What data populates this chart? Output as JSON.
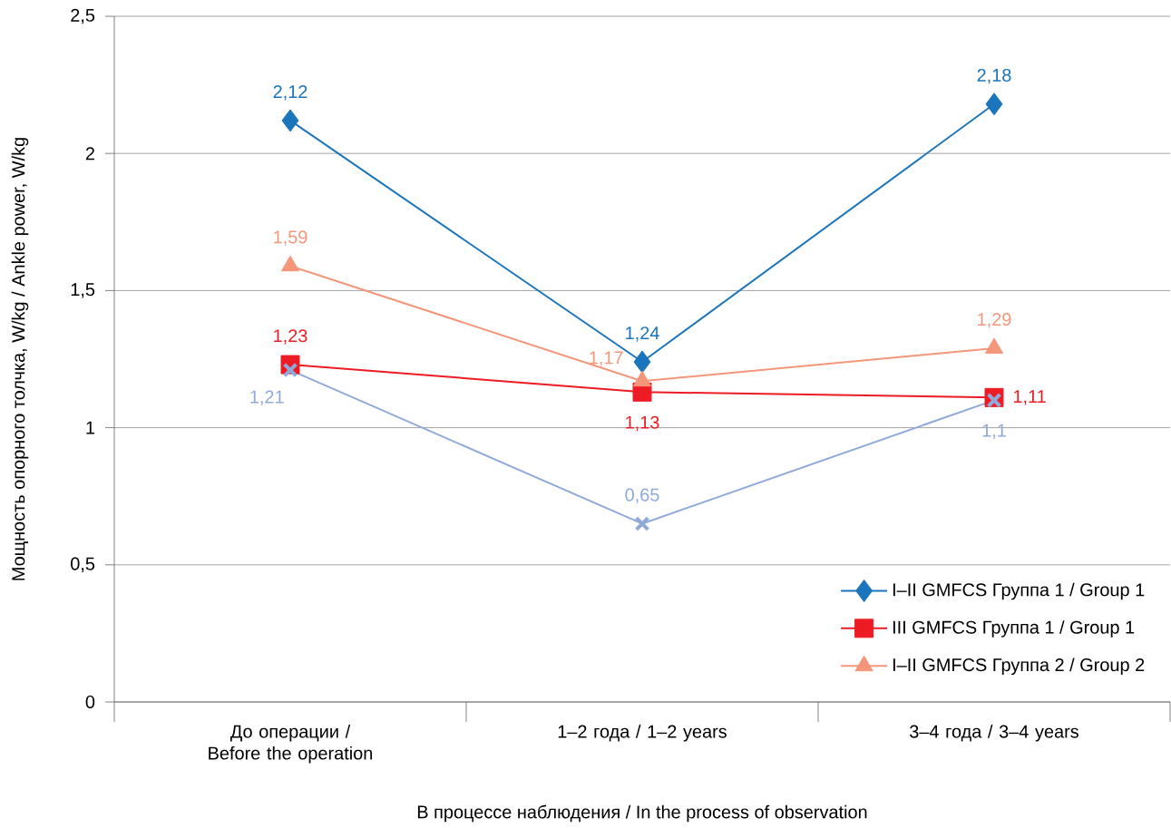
{
  "chart_data": {
    "type": "line",
    "xlabel": "В процессе наблюдения / In the process of observation",
    "ylabel": "Мощность опорного толчка, W/kg / Ankle power, W/kg",
    "categories": [
      "До операции / Before the operation",
      "1–2 года / 1–2 years",
      "3–4 года / 3–4 years"
    ],
    "ylim": [
      0,
      2.5
    ],
    "yticks": [
      0,
      {
        "value": 0.5,
        "label": "0,5"
      },
      1,
      {
        "value": 1.5,
        "label": "1,5"
      },
      2,
      {
        "value": 2.5,
        "label": "2,5"
      }
    ],
    "grid": "y",
    "legend": "bottom right",
    "line_style": "solid",
    "series": [
      {
        "name": "I–II GMFCS Группа 1 / Group 1",
        "color": "#1a75bc",
        "marker": "diamond",
        "values": [
          2.12,
          1.24,
          2.18
        ],
        "value_labels": [
          "2,12",
          "1,24",
          "2,18"
        ]
      },
      {
        "name": "III GMFCS Группа 1 / Group 1",
        "color": "#ed1c24",
        "marker": "square",
        "values": [
          1.23,
          1.13,
          1.11
        ],
        "value_labels": [
          "1,23",
          "1,13",
          "1,11"
        ]
      },
      {
        "name": "I–II GMFCS Группа 2 / Group 2",
        "color": "#f4967a",
        "marker": "triangle",
        "values": [
          1.59,
          1.17,
          1.29
        ],
        "value_labels": [
          "1,59",
          "1,17",
          "1,29"
        ]
      },
      {
        "color": "#8fa9d9",
        "marker": "cross",
        "values": [
          1.21,
          0.65,
          1.1
        ],
        "value_labels": [
          "1,21",
          "0,65",
          "1,1"
        ]
      }
    ]
  }
}
